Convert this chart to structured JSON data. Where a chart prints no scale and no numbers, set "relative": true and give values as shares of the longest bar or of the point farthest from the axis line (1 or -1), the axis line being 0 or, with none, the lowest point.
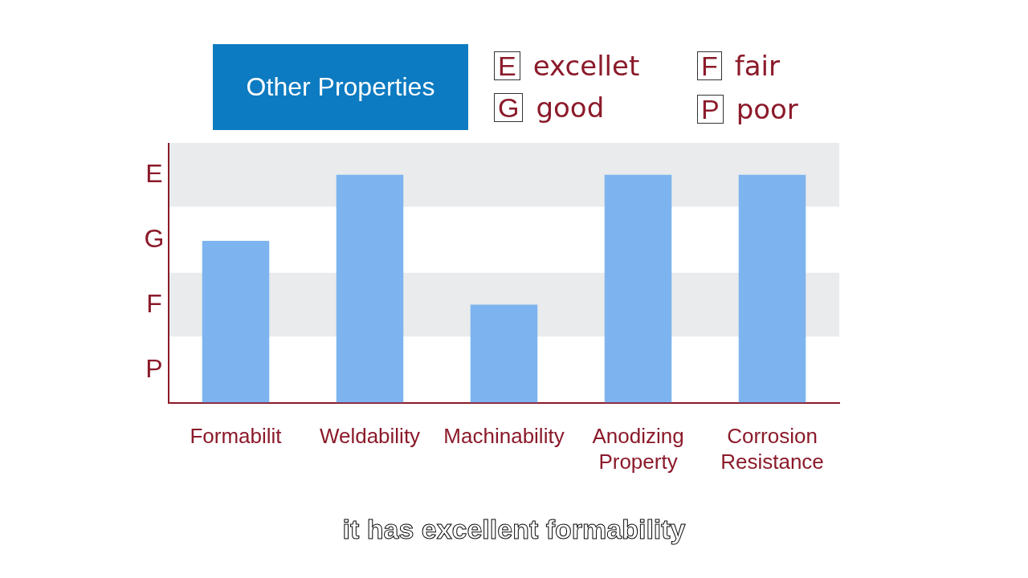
{
  "chart_data": {
    "type": "bar",
    "title": "Other Properties",
    "categories": [
      "Formabilit",
      "Weldability",
      "Machinability",
      "Anodizing Property",
      "Corrosion Resistance"
    ],
    "values": [
      0.71,
      1,
      0.43,
      1,
      1
    ],
    "color": "#7db4ef",
    "relative": true,
    "bands": [
      {
        "axis": "y",
        "from": 0.29,
        "to": 0.57,
        "color": "#e9ebec"
      },
      {
        "axis": "y",
        "from": 0.86,
        "to": 1.14,
        "color": "#e9ebec"
      }
    ],
    "grid": false,
    "legend": false,
    "annotations": [
      "E excellet",
      "G good",
      "F fair",
      "P poor",
      "it has excellent formability",
      "E",
      "G",
      "F",
      "P"
    ]
  }
}
